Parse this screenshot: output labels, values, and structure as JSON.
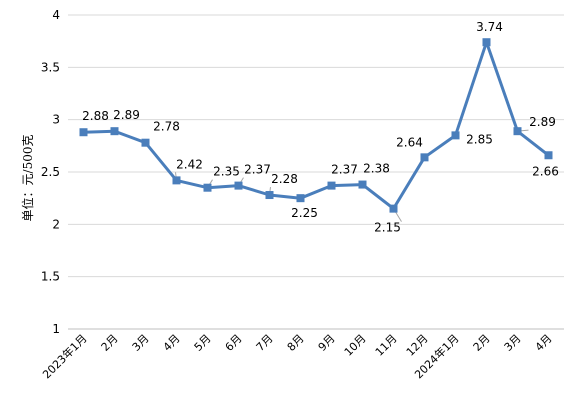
{
  "chart_data": {
    "type": "line",
    "title": "",
    "xlabel": "",
    "ylabel": "单位：元/500克",
    "ylim": [
      1,
      4
    ],
    "ytick_step": 0.5,
    "yticks": [
      "1",
      "1.5",
      "2",
      "2.5",
      "3",
      "3.5",
      "4"
    ],
    "grid": true,
    "legend": "none",
    "categories": [
      "2023年1月",
      "2月",
      "3月",
      "4月",
      "5月",
      "6月",
      "7月",
      "8月",
      "9月",
      "10月",
      "11月",
      "12月",
      "2024年1月",
      "2月",
      "3月",
      "4月"
    ],
    "series": [
      {
        "color": "#4a7ebb",
        "marker": "square",
        "values": [
          2.88,
          2.89,
          2.78,
          2.42,
          2.35,
          2.37,
          2.28,
          2.25,
          2.37,
          2.38,
          2.15,
          2.64,
          2.85,
          3.74,
          2.89,
          2.66
        ],
        "labels": [
          "2.88",
          "2.89",
          "2.78",
          "2.42",
          "2.35",
          "2.37",
          "2.28",
          "2.25",
          "2.37",
          "2.38",
          "2.15",
          "2.64",
          "2.85",
          "3.74",
          "2.89",
          "2.66"
        ]
      }
    ]
  }
}
